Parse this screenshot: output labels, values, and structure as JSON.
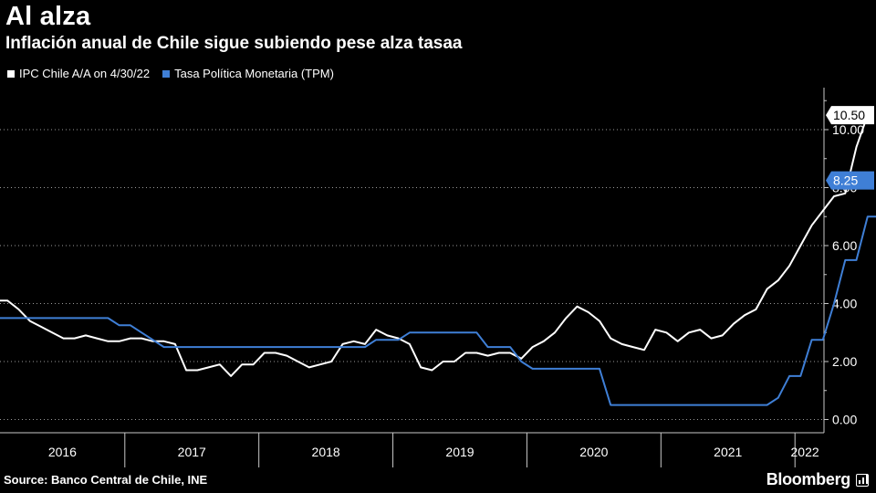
{
  "header": {
    "title": "Al alza",
    "subtitle": "Inflación anual de Chile sigue subiendo pese alza tasaa"
  },
  "legend": {
    "ipc_label": "IPC Chile A/A on 4/30/22",
    "tpm_label": "Tasa Política Monetaria (TPM)"
  },
  "footer": {
    "source": "Source: Banco Central de Chile, INE",
    "brand": "Bloomberg"
  },
  "colors": {
    "ipc": "#ffffff",
    "tpm": "#3f7fd6",
    "background": "#000000",
    "grid": "#9a9a9a"
  },
  "chart_data": {
    "type": "line",
    "title": "Al alza",
    "subtitle": "Inflación anual de Chile sigue subiendo pese alza tasaa",
    "x_unit": "month",
    "x_start": "2015-12",
    "ylim": [
      -0.4,
      11.2
    ],
    "y_ticks": [
      0,
      2,
      4,
      6,
      8,
      10
    ],
    "y_tick_labels": [
      "0.00",
      "2.00",
      "4.00",
      "6.00",
      "8.00",
      "10.00"
    ],
    "year_labels": [
      "2016",
      "2017",
      "2018",
      "2019",
      "2020",
      "2021",
      "2022"
    ],
    "grid": "horizontal-dotted",
    "legend_position": "top-left",
    "series": [
      {
        "name": "IPC Chile A/A on 4/30/22",
        "color": "#ffffff",
        "last_value_label": "10.50",
        "values": [
          4.4,
          4.1,
          4.1,
          3.8,
          3.4,
          3.2,
          3.0,
          2.8,
          2.8,
          2.9,
          2.8,
          2.7,
          2.7,
          2.8,
          2.8,
          2.7,
          2.7,
          2.6,
          1.7,
          1.7,
          1.8,
          1.9,
          1.5,
          1.9,
          1.9,
          2.3,
          2.3,
          2.2,
          2.0,
          1.8,
          1.9,
          2.0,
          2.6,
          2.7,
          2.6,
          3.1,
          2.9,
          2.8,
          2.6,
          1.8,
          1.7,
          2.0,
          2.0,
          2.3,
          2.3,
          2.2,
          2.3,
          2.3,
          2.1,
          2.5,
          2.7,
          3.0,
          3.5,
          3.9,
          3.7,
          3.4,
          2.8,
          2.6,
          2.5,
          2.4,
          3.1,
          3.0,
          2.7,
          3.0,
          3.1,
          2.8,
          2.9,
          3.3,
          3.6,
          3.8,
          4.5,
          4.8,
          5.3,
          6.0,
          6.7,
          7.2,
          7.7,
          7.8,
          9.4,
          10.5
        ]
      },
      {
        "name": "Tasa Política Monetaria (TPM)",
        "color": "#3f7fd6",
        "last_value_label": "8.25",
        "values": [
          3.5,
          3.5,
          3.5,
          3.5,
          3.5,
          3.5,
          3.5,
          3.5,
          3.5,
          3.5,
          3.5,
          3.5,
          3.25,
          3.25,
          3.0,
          2.75,
          2.5,
          2.5,
          2.5,
          2.5,
          2.5,
          2.5,
          2.5,
          2.5,
          2.5,
          2.5,
          2.5,
          2.5,
          2.5,
          2.5,
          2.5,
          2.5,
          2.5,
          2.5,
          2.5,
          2.75,
          2.75,
          2.75,
          3.0,
          3.0,
          3.0,
          3.0,
          3.0,
          3.0,
          3.0,
          2.5,
          2.5,
          2.5,
          2.0,
          1.75,
          1.75,
          1.75,
          1.75,
          1.75,
          1.75,
          1.75,
          0.5,
          0.5,
          0.5,
          0.5,
          0.5,
          0.5,
          0.5,
          0.5,
          0.5,
          0.5,
          0.5,
          0.5,
          0.5,
          0.5,
          0.5,
          0.75,
          1.5,
          1.5,
          2.75,
          2.75,
          4.0,
          5.5,
          5.5,
          7.0,
          7.0,
          8.25
        ]
      }
    ]
  }
}
